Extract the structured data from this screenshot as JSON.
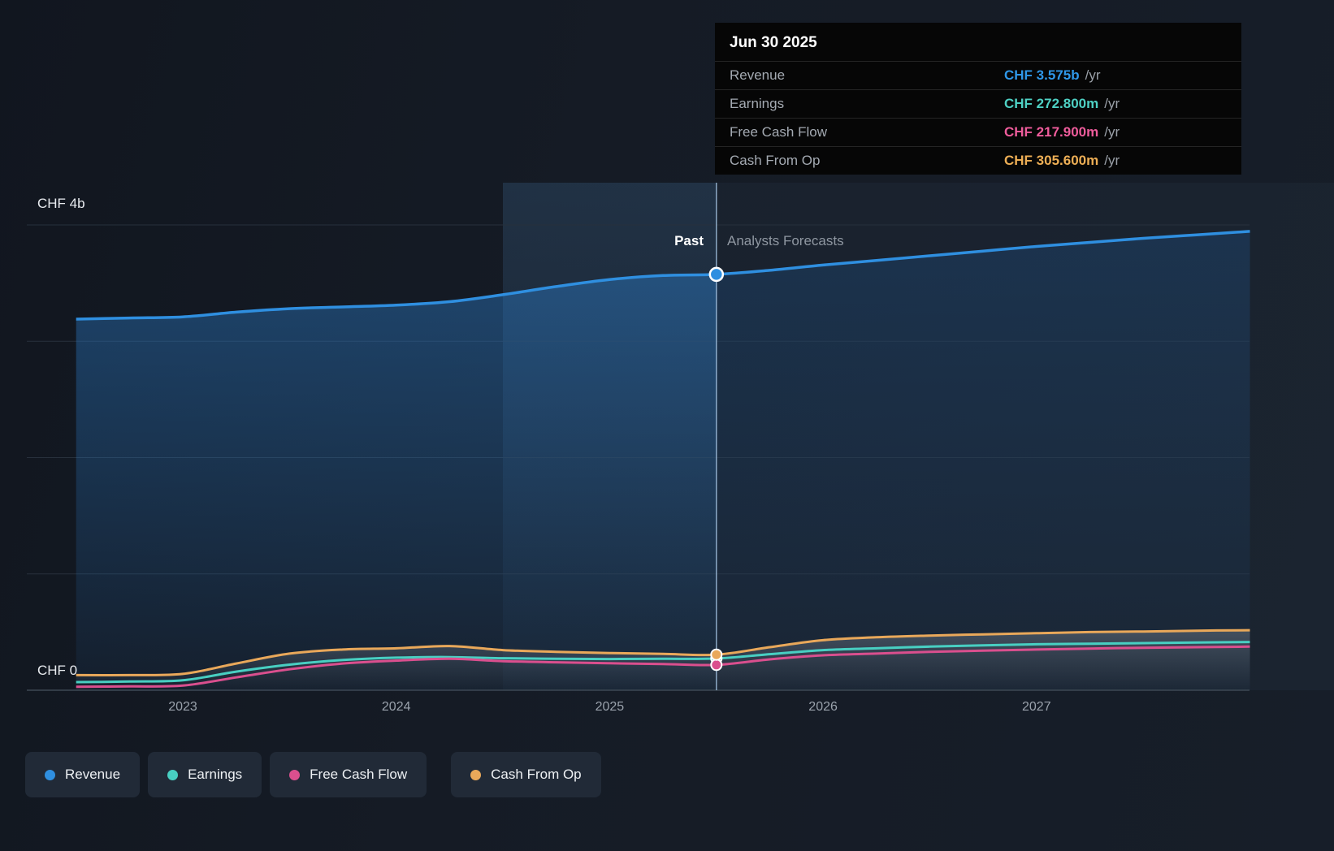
{
  "page": {
    "background": "#151b25"
  },
  "tooltip": {
    "date": "Jun 30 2025",
    "rows": [
      {
        "label": "Revenue",
        "value": "CHF 3.575b",
        "suffix": "/yr",
        "color": "#2f97e8"
      },
      {
        "label": "Earnings",
        "value": "CHF 272.800m",
        "suffix": "/yr",
        "color": "#4ed0c3"
      },
      {
        "label": "Free Cash Flow",
        "value": "CHF 217.900m",
        "suffix": "/yr",
        "color": "#ee5c9b"
      },
      {
        "label": "Cash From Op",
        "value": "CHF 305.600m",
        "suffix": "/yr",
        "color": "#edae55"
      }
    ]
  },
  "axis": {
    "y_top_label": "CHF 4b",
    "y_zero_label": "CHF 0",
    "x_ticks": [
      "2023",
      "2024",
      "2025",
      "2026",
      "2027"
    ]
  },
  "annotations": {
    "past_label": "Past",
    "forecast_label": "Analysts Forecasts"
  },
  "legend": [
    {
      "label": "Revenue",
      "color": "#2f8fe0"
    },
    {
      "label": "Earnings",
      "color": "#48cfc2"
    },
    {
      "label": "Free Cash Flow",
      "color": "#da4f8e"
    },
    {
      "label": "Cash From Op",
      "color": "#e9a85a"
    }
  ],
  "chart_data": {
    "type": "area",
    "title": "",
    "ylabel": "CHF",
    "unit": "billions CHF per year",
    "ylim": [
      0,
      4
    ],
    "x_tick_years": [
      2023,
      2024,
      2025,
      2026,
      2027
    ],
    "divider_x": 2025.5,
    "divider_date": "Jun 30 2025",
    "highlight_band": [
      2024.5,
      2025.5
    ],
    "x_years": [
      2022.5,
      2022.75,
      2023,
      2023.25,
      2023.5,
      2023.75,
      2024,
      2024.25,
      2024.5,
      2024.75,
      2025,
      2025.25,
      2025.5,
      2025.75,
      2026,
      2026.25,
      2026.5,
      2026.75,
      2027,
      2027.25,
      2027.5,
      2027.75,
      2028
    ],
    "series": [
      {
        "name": "Revenue",
        "color": "#2f8fe0",
        "values": [
          3.19,
          3.2,
          3.21,
          3.25,
          3.28,
          3.295,
          3.31,
          3.34,
          3.4,
          3.47,
          3.53,
          3.565,
          3.575,
          3.61,
          3.655,
          3.695,
          3.735,
          3.775,
          3.815,
          3.85,
          3.885,
          3.915,
          3.945
        ]
      },
      {
        "name": "Earnings",
        "color": "#48cfc2",
        "values": [
          0.07,
          0.075,
          0.085,
          0.16,
          0.22,
          0.26,
          0.28,
          0.285,
          0.275,
          0.27,
          0.268,
          0.27,
          0.2728,
          0.31,
          0.345,
          0.36,
          0.375,
          0.385,
          0.395,
          0.4,
          0.405,
          0.41,
          0.415
        ]
      },
      {
        "name": "Free Cash Flow",
        "color": "#da4f8e",
        "values": [
          0.03,
          0.033,
          0.04,
          0.11,
          0.18,
          0.23,
          0.255,
          0.27,
          0.25,
          0.24,
          0.232,
          0.225,
          0.2179,
          0.265,
          0.3,
          0.315,
          0.33,
          0.34,
          0.35,
          0.358,
          0.365,
          0.37,
          0.375
        ]
      },
      {
        "name": "Cash From Op",
        "color": "#e9a85a",
        "values": [
          0.13,
          0.13,
          0.14,
          0.23,
          0.315,
          0.35,
          0.36,
          0.38,
          0.345,
          0.33,
          0.32,
          0.312,
          0.3056,
          0.37,
          0.43,
          0.455,
          0.47,
          0.48,
          0.49,
          0.5,
          0.505,
          0.512,
          0.516
        ]
      }
    ],
    "marker_values": {
      "Revenue": 3.575,
      "Earnings": 0.2728,
      "Free Cash Flow": 0.2179,
      "Cash From Op": 0.3056
    }
  }
}
